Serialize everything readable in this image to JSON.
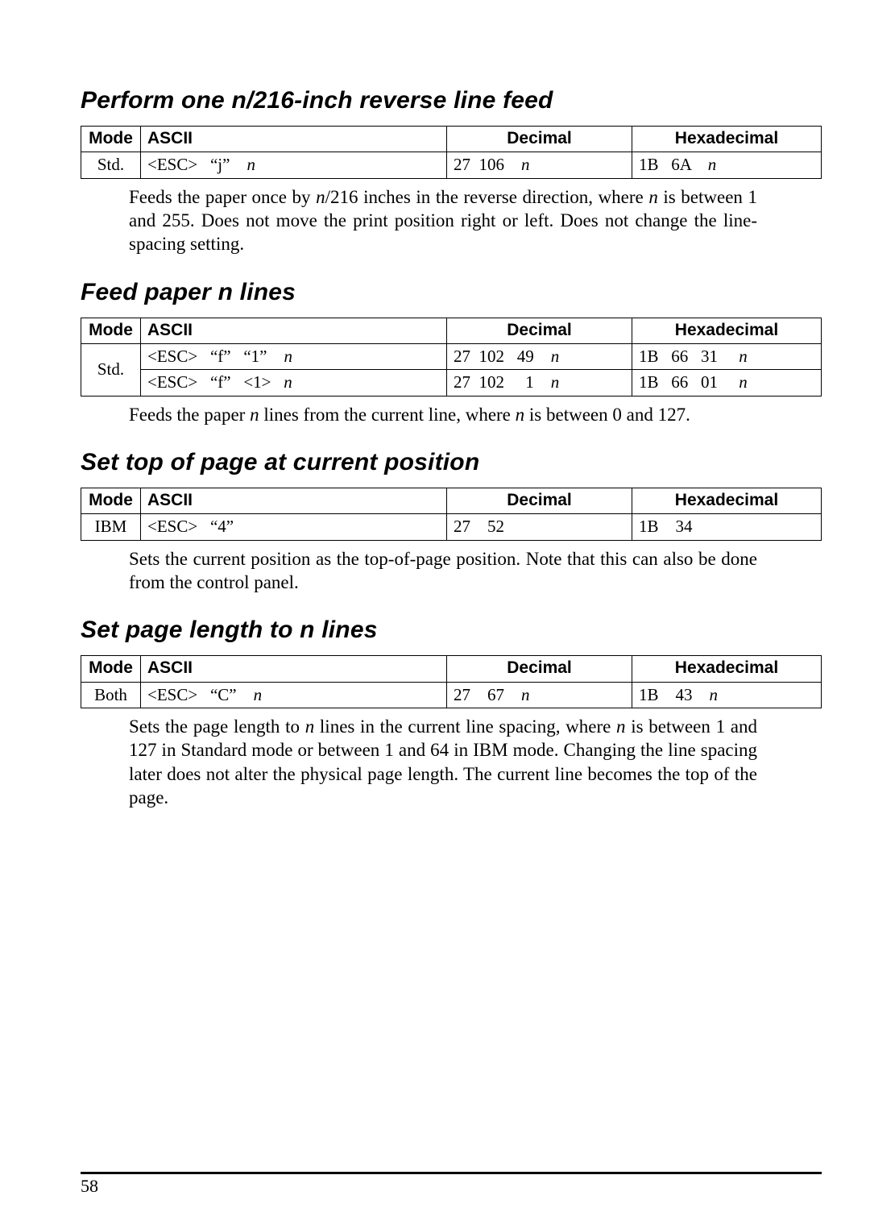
{
  "page_number": "58",
  "sections": [
    {
      "title_html": "Perform one <span class='n-italic'>n/216-inch</span> reverse line feed",
      "table": {
        "headers": [
          "Mode",
          "ASCII",
          "Decimal",
          "Hexadecimal"
        ],
        "rows": [
          {
            "mode": "Std.",
            "ascii": "<ESC>   “j”    n",
            "decimal": "27  106    n",
            "hex": "1B   6A    n"
          }
        ],
        "mode_rowspan": 1
      },
      "desc_html": "Feeds the paper once by <span class='n'>n</span>/216 inches in the reverse direction, where <span class='n'>n</span> is between 1 and 255. Does not move the print position right or left. Does not change the line-spacing setting."
    },
    {
      "title_html": "Feed paper <span class='n-italic'>n</span> lines",
      "table": {
        "headers": [
          "Mode",
          "ASCII",
          "Decimal",
          "Hexadecimal"
        ],
        "rows": [
          {
            "mode": "Std.",
            "ascii": "<ESC>   “f”   “1”    n",
            "decimal": "27  102   49    n",
            "hex": "1B   66   31     n"
          },
          {
            "mode": "",
            "ascii": "<ESC>   “f”   <1>   n",
            "decimal": "27  102     1    n",
            "hex": "1B   66   01     n"
          }
        ],
        "mode_rowspan": 2
      },
      "desc_html": "Feeds the paper <span class='n'>n</span> lines from the current line, where <span class='n'>n</span> is between 0 and 127."
    },
    {
      "title_html": "Set top of page at current position",
      "table": {
        "headers": [
          "Mode",
          "ASCII",
          "Decimal",
          "Hexadecimal"
        ],
        "rows": [
          {
            "mode": "IBM",
            "ascii": "<ESC>   “4”",
            "decimal": "27    52",
            "hex": "1B    34"
          }
        ],
        "mode_rowspan": 1
      },
      "desc_html": "Sets the current position as the top-of-page position. Note that this can also be done from the control panel."
    },
    {
      "title_html": "Set page length to <span class='n-italic'>n</span> lines",
      "table": {
        "headers": [
          "Mode",
          "ASCII",
          "Decimal",
          "Hexadecimal"
        ],
        "rows": [
          {
            "mode": "Both",
            "ascii": "<ESC>   “C”    n",
            "decimal": "27    67    n",
            "hex": "1B    43    n"
          }
        ],
        "mode_rowspan": 1
      },
      "desc_html": "Sets the page length to <span class='n'>n</span> lines in the current line spacing, where <span class='n'>n</span> is between 1 and 127 in Standard mode or between 1 and 64 in IBM mode. Changing the line spacing later does not alter the physical page length. The current line becomes the top of the page."
    }
  ]
}
